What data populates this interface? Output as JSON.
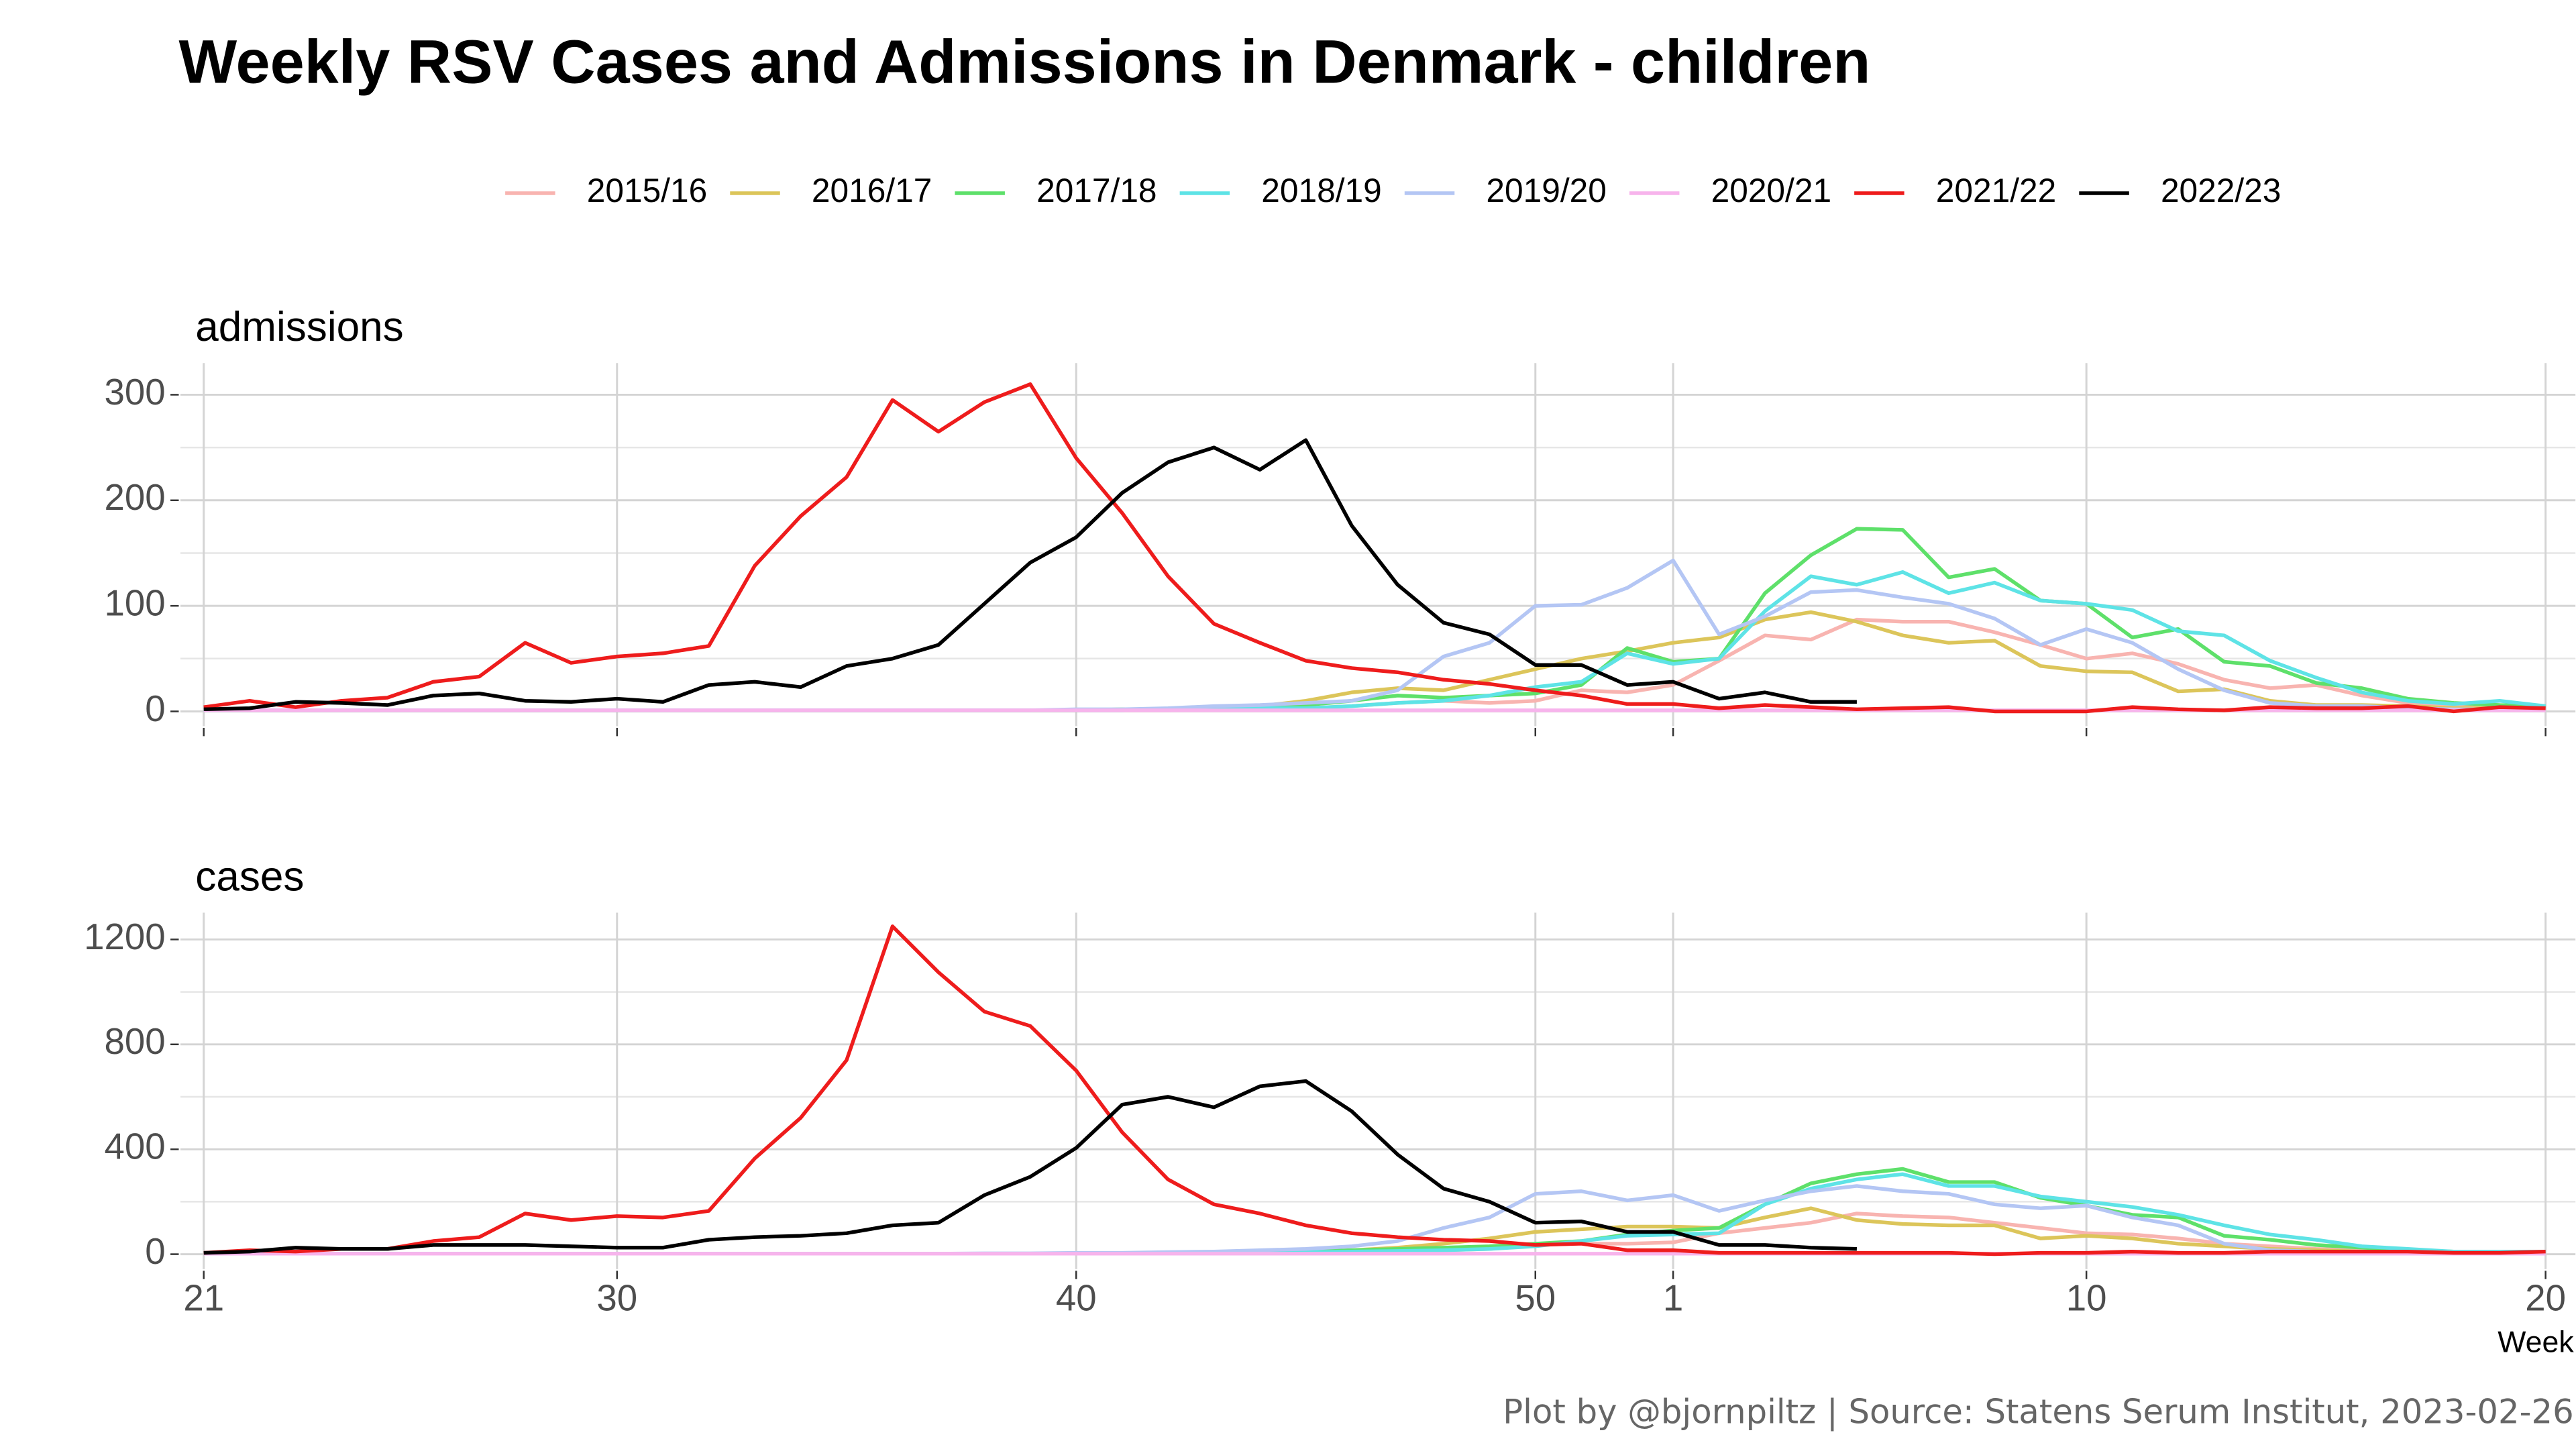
{
  "title": "Weekly RSV Cases and Admissions in Denmark - children",
  "x_label": "Week",
  "caption": "Plot by @bjornpiltz | Source: Statens Serum Institut, 2023-02-26",
  "chart_data": [
    {
      "type": "line",
      "title": "admissions",
      "categories": [
        21,
        22,
        23,
        24,
        25,
        26,
        27,
        28,
        29,
        30,
        31,
        32,
        33,
        34,
        35,
        36,
        37,
        38,
        39,
        40,
        41,
        42,
        43,
        44,
        45,
        46,
        47,
        48,
        49,
        50,
        51,
        52,
        1,
        2,
        3,
        4,
        5,
        6,
        7,
        8,
        9,
        10,
        11,
        12,
        13,
        14,
        15,
        16,
        17,
        18,
        19,
        20
      ],
      "xticks": [
        21,
        30,
        40,
        50,
        1,
        10,
        20
      ],
      "ylim": [
        -14,
        330
      ],
      "yticks": [
        0,
        100,
        200,
        300
      ],
      "grid": true,
      "series": [
        {
          "name": "2015/16",
          "color": "#f8b4b0",
          "values": [
            2,
            1,
            1,
            1,
            1,
            1,
            1,
            1,
            1,
            1,
            1,
            1,
            1,
            1,
            1,
            1,
            1,
            1,
            1,
            1,
            1,
            1,
            2,
            2,
            3,
            5,
            8,
            10,
            8,
            10,
            20,
            18,
            25,
            48,
            72,
            68,
            87,
            85,
            85,
            75,
            63,
            50,
            55,
            45,
            30,
            22,
            25,
            15,
            8,
            5,
            5,
            4
          ]
        },
        {
          "name": "2016/17",
          "color": "#dcc55a",
          "values": [
            1,
            1,
            1,
            1,
            1,
            1,
            1,
            1,
            1,
            1,
            1,
            1,
            1,
            1,
            1,
            1,
            1,
            1,
            1,
            1,
            2,
            2,
            3,
            5,
            10,
            18,
            22,
            20,
            30,
            40,
            50,
            57,
            65,
            70,
            87,
            94,
            85,
            72,
            65,
            67,
            43,
            38,
            37,
            19,
            21,
            10,
            6,
            6,
            5,
            3,
            3,
            3
          ]
        },
        {
          "name": "2017/18",
          "color": "#5ee06a",
          "values": [
            1,
            1,
            1,
            1,
            1,
            1,
            1,
            1,
            1,
            1,
            1,
            1,
            1,
            1,
            1,
            1,
            1,
            1,
            1,
            1,
            2,
            2,
            2,
            5,
            6,
            10,
            15,
            13,
            15,
            17,
            25,
            60,
            47,
            50,
            112,
            148,
            173,
            172,
            127,
            135,
            105,
            102,
            70,
            78,
            47,
            43,
            27,
            22,
            12,
            8,
            6,
            5
          ]
        },
        {
          "name": "2018/19",
          "color": "#5ee3e6",
          "values": [
            1,
            1,
            1,
            1,
            1,
            1,
            1,
            1,
            1,
            1,
            1,
            1,
            1,
            1,
            1,
            1,
            1,
            1,
            1,
            1,
            1,
            2,
            2,
            3,
            3,
            5,
            8,
            10,
            15,
            23,
            28,
            55,
            45,
            50,
            95,
            128,
            120,
            132,
            112,
            122,
            105,
            102,
            96,
            76,
            72,
            48,
            32,
            18,
            10,
            7,
            10,
            5
          ]
        },
        {
          "name": "2019/20",
          "color": "#b4c6f4",
          "values": [
            1,
            1,
            1,
            1,
            1,
            1,
            1,
            1,
            1,
            1,
            1,
            1,
            1,
            1,
            1,
            1,
            1,
            1,
            1,
            2,
            2,
            3,
            5,
            6,
            8,
            10,
            20,
            52,
            65,
            100,
            101,
            117,
            143,
            73,
            90,
            113,
            115,
            108,
            102,
            88,
            63,
            78,
            65,
            40,
            20,
            8,
            5,
            5,
            3,
            2,
            2,
            2
          ]
        },
        {
          "name": "2020/21",
          "color": "#f7b4ec",
          "values": [
            1,
            1,
            1,
            1,
            1,
            1,
            1,
            1,
            1,
            1,
            1,
            1,
            1,
            1,
            1,
            1,
            1,
            1,
            1,
            1,
            1,
            1,
            1,
            1,
            1,
            1,
            1,
            1,
            1,
            1,
            1,
            1,
            1,
            1,
            1,
            1,
            1,
            1,
            1,
            1,
            1,
            1,
            1,
            1,
            1,
            1,
            1,
            1,
            1,
            1,
            1,
            1
          ]
        },
        {
          "name": "2021/22",
          "color": "#ee1c1c",
          "values": [
            4,
            10,
            4,
            10,
            13,
            28,
            33,
            65,
            46,
            52,
            55,
            62,
            138,
            185,
            222,
            295,
            265,
            293,
            310,
            240,
            188,
            128,
            83,
            65,
            48,
            41,
            37,
            30,
            26,
            20,
            15,
            7,
            7,
            3,
            6,
            4,
            2,
            3,
            4,
            0,
            0,
            0,
            4,
            2,
            1,
            4,
            3,
            3,
            5,
            0,
            4,
            3
          ]
        },
        {
          "name": "2022/23",
          "color": "#000000",
          "values": [
            2,
            3,
            9,
            8,
            6,
            15,
            17,
            10,
            9,
            12,
            9,
            25,
            28,
            23,
            43,
            50,
            63,
            102,
            141,
            165,
            207,
            236,
            250,
            229,
            257,
            176,
            120,
            84,
            73,
            44,
            44,
            25,
            28,
            12,
            18,
            9,
            9,
            null,
            null,
            null,
            null,
            null,
            null,
            null,
            null,
            null,
            null,
            null,
            null,
            null,
            null,
            null
          ]
        }
      ]
    },
    {
      "type": "line",
      "title": "cases",
      "categories": [
        21,
        22,
        23,
        24,
        25,
        26,
        27,
        28,
        29,
        30,
        31,
        32,
        33,
        34,
        35,
        36,
        37,
        38,
        39,
        40,
        41,
        42,
        43,
        44,
        45,
        46,
        47,
        48,
        49,
        50,
        51,
        52,
        1,
        2,
        3,
        4,
        5,
        6,
        7,
        8,
        9,
        10,
        11,
        12,
        13,
        14,
        15,
        16,
        17,
        18,
        19,
        20
      ],
      "xticks": [
        21,
        30,
        40,
        50,
        1,
        10,
        20
      ],
      "ylim": [
        -57,
        1302
      ],
      "yticks": [
        0,
        400,
        800,
        1200
      ],
      "grid": true,
      "series": [
        {
          "name": "2015/16",
          "color": "#f8b4b0",
          "values": [
            2,
            2,
            2,
            2,
            2,
            2,
            2,
            2,
            2,
            2,
            2,
            2,
            2,
            2,
            2,
            2,
            2,
            2,
            2,
            2,
            2,
            3,
            3,
            5,
            5,
            8,
            10,
            15,
            20,
            35,
            40,
            40,
            45,
            80,
            100,
            120,
            155,
            145,
            140,
            120,
            100,
            80,
            75,
            60,
            40,
            30,
            20,
            15,
            10,
            8,
            5,
            5
          ]
        },
        {
          "name": "2016/17",
          "color": "#dcc55a",
          "values": [
            2,
            2,
            2,
            2,
            2,
            2,
            2,
            2,
            2,
            2,
            2,
            2,
            2,
            2,
            2,
            2,
            2,
            2,
            2,
            2,
            3,
            3,
            5,
            8,
            10,
            15,
            25,
            40,
            60,
            85,
            95,
            105,
            105,
            100,
            140,
            175,
            130,
            115,
            110,
            110,
            60,
            70,
            60,
            40,
            30,
            20,
            15,
            10,
            8,
            5,
            5,
            5
          ]
        },
        {
          "name": "2017/18",
          "color": "#5ee06a",
          "values": [
            2,
            2,
            2,
            2,
            2,
            2,
            2,
            2,
            2,
            2,
            2,
            2,
            2,
            2,
            2,
            2,
            2,
            2,
            2,
            2,
            3,
            3,
            5,
            8,
            10,
            15,
            20,
            25,
            30,
            40,
            50,
            75,
            90,
            100,
            190,
            270,
            305,
            325,
            275,
            275,
            215,
            185,
            150,
            140,
            70,
            55,
            35,
            25,
            15,
            10,
            10,
            10
          ]
        },
        {
          "name": "2018/19",
          "color": "#5ee3e6",
          "values": [
            2,
            2,
            2,
            2,
            2,
            2,
            2,
            2,
            2,
            2,
            2,
            2,
            2,
            2,
            2,
            2,
            2,
            2,
            2,
            2,
            3,
            3,
            5,
            5,
            8,
            10,
            12,
            15,
            20,
            30,
            50,
            70,
            75,
            80,
            190,
            250,
            285,
            305,
            260,
            260,
            220,
            200,
            180,
            150,
            110,
            75,
            55,
            30,
            20,
            10,
            10,
            10
          ]
        },
        {
          "name": "2019/20",
          "color": "#b4c6f4",
          "values": [
            2,
            2,
            2,
            2,
            2,
            2,
            2,
            2,
            2,
            2,
            2,
            2,
            2,
            2,
            2,
            2,
            2,
            3,
            3,
            5,
            5,
            8,
            10,
            15,
            20,
            30,
            50,
            100,
            140,
            230,
            240,
            205,
            225,
            165,
            205,
            240,
            260,
            240,
            230,
            190,
            175,
            185,
            140,
            110,
            40,
            15,
            10,
            5,
            5,
            5,
            5,
            5
          ]
        },
        {
          "name": "2020/21",
          "color": "#f7b4ec",
          "values": [
            2,
            2,
            2,
            2,
            2,
            2,
            2,
            2,
            2,
            2,
            2,
            2,
            2,
            2,
            2,
            2,
            2,
            2,
            2,
            2,
            2,
            2,
            2,
            2,
            2,
            2,
            2,
            2,
            2,
            2,
            2,
            2,
            2,
            2,
            2,
            2,
            2,
            2,
            2,
            2,
            2,
            2,
            2,
            2,
            2,
            2,
            2,
            2,
            2,
            2,
            2,
            2
          ]
        },
        {
          "name": "2021/22",
          "color": "#ee1c1c",
          "values": [
            5,
            15,
            10,
            20,
            20,
            50,
            65,
            155,
            130,
            145,
            140,
            165,
            365,
            520,
            740,
            1250,
            1075,
            925,
            870,
            700,
            465,
            285,
            190,
            155,
            110,
            80,
            65,
            55,
            50,
            35,
            40,
            15,
            15,
            5,
            5,
            5,
            5,
            5,
            5,
            0,
            5,
            5,
            10,
            5,
            5,
            10,
            10,
            10,
            10,
            5,
            5,
            10
          ]
        },
        {
          "name": "2022/23",
          "color": "#000000",
          "values": [
            5,
            10,
            25,
            20,
            20,
            35,
            35,
            35,
            30,
            25,
            25,
            55,
            65,
            70,
            80,
            110,
            120,
            225,
            295,
            405,
            570,
            600,
            560,
            640,
            660,
            545,
            380,
            250,
            200,
            120,
            125,
            85,
            85,
            35,
            35,
            25,
            20,
            null,
            null,
            null,
            null,
            null,
            null,
            null,
            null,
            null,
            null,
            null,
            null,
            null,
            null,
            null
          ]
        }
      ]
    }
  ]
}
